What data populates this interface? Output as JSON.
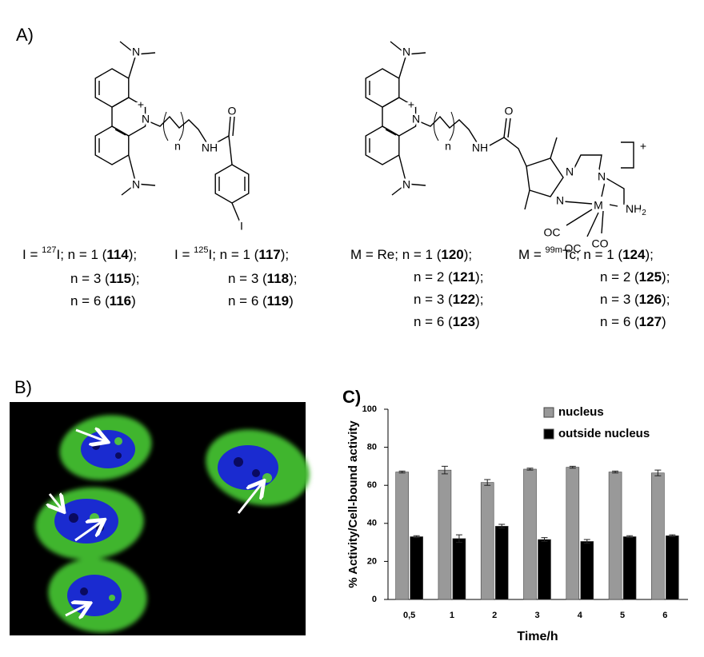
{
  "panels": {
    "a": "A)",
    "b": "B)",
    "c": "C)"
  },
  "structures": {
    "left": [
      "N",
      "N",
      "+",
      "N",
      "n",
      "NH",
      "O",
      "I"
    ],
    "right": [
      "N",
      "N",
      "+",
      "N",
      "n",
      "NH",
      "O",
      "N",
      "N",
      "N",
      "M",
      "NH",
      "2",
      "OC",
      "OC",
      "CO",
      "+"
    ]
  },
  "captions": {
    "left": [
      {
        "prefix": "I = ",
        "sup": "127",
        "text": "I; n = 1 (",
        "bold": "114",
        "suffix": ");"
      },
      {
        "text": "n = 3 (",
        "bold": "115",
        "suffix": ");"
      },
      {
        "text": "n = 6 (",
        "bold": "116",
        "suffix": ")"
      },
      {
        "prefix": "I = ",
        "sup": "125",
        "text": "I; n = 1 (",
        "bold": "117",
        "suffix": ");"
      },
      {
        "text": "n = 3 (",
        "bold": "118",
        "suffix": ");"
      },
      {
        "text": "n = 6 (",
        "bold": "119",
        "suffix": ")"
      }
    ],
    "right": [
      {
        "text": "M = Re; n = 1 (",
        "bold": "120",
        "suffix": ");"
      },
      {
        "text": "n = 2 (",
        "bold": "121",
        "suffix": ");"
      },
      {
        "text": "n = 3 (",
        "bold": "122",
        "suffix": ");"
      },
      {
        "text": "n = 6 (",
        "bold": "123",
        "suffix": ")"
      },
      {
        "prefix": "M = ",
        "sup": "99m",
        "text": "Tc; n = 1 (",
        "bold": "124",
        "suffix": ");"
      },
      {
        "text": "n = 2 (",
        "bold": "125",
        "suffix": ");"
      },
      {
        "text": "n = 3 (",
        "bold": "126",
        "suffix": ");"
      },
      {
        "text": "n = 6 (",
        "bold": "127",
        "suffix": ")"
      }
    ]
  },
  "chart_data": {
    "type": "bar",
    "y_label": "% Activity/Cell-bound activity",
    "x_label": "Time/h",
    "categories": [
      "0,5",
      "1",
      "2",
      "3",
      "4",
      "5",
      "6"
    ],
    "series": [
      {
        "name": "nucleus",
        "color": "#999999",
        "values": [
          67,
          68,
          61.5,
          68.5,
          69.5,
          67,
          66.5
        ],
        "errors": [
          0.5,
          2,
          1.5,
          0.5,
          0.5,
          0.5,
          1.5
        ]
      },
      {
        "name": "outside nucleus",
        "color": "#000000",
        "values": [
          33,
          32,
          38.5,
          31.5,
          30.5,
          33,
          33.5
        ],
        "errors": [
          0.5,
          2,
          1,
          1,
          1,
          0.5,
          0.5
        ]
      }
    ],
    "ylim": [
      0,
      100
    ],
    "yticks": [
      0,
      20,
      40,
      60,
      80,
      100
    ],
    "legend": "top-right"
  }
}
